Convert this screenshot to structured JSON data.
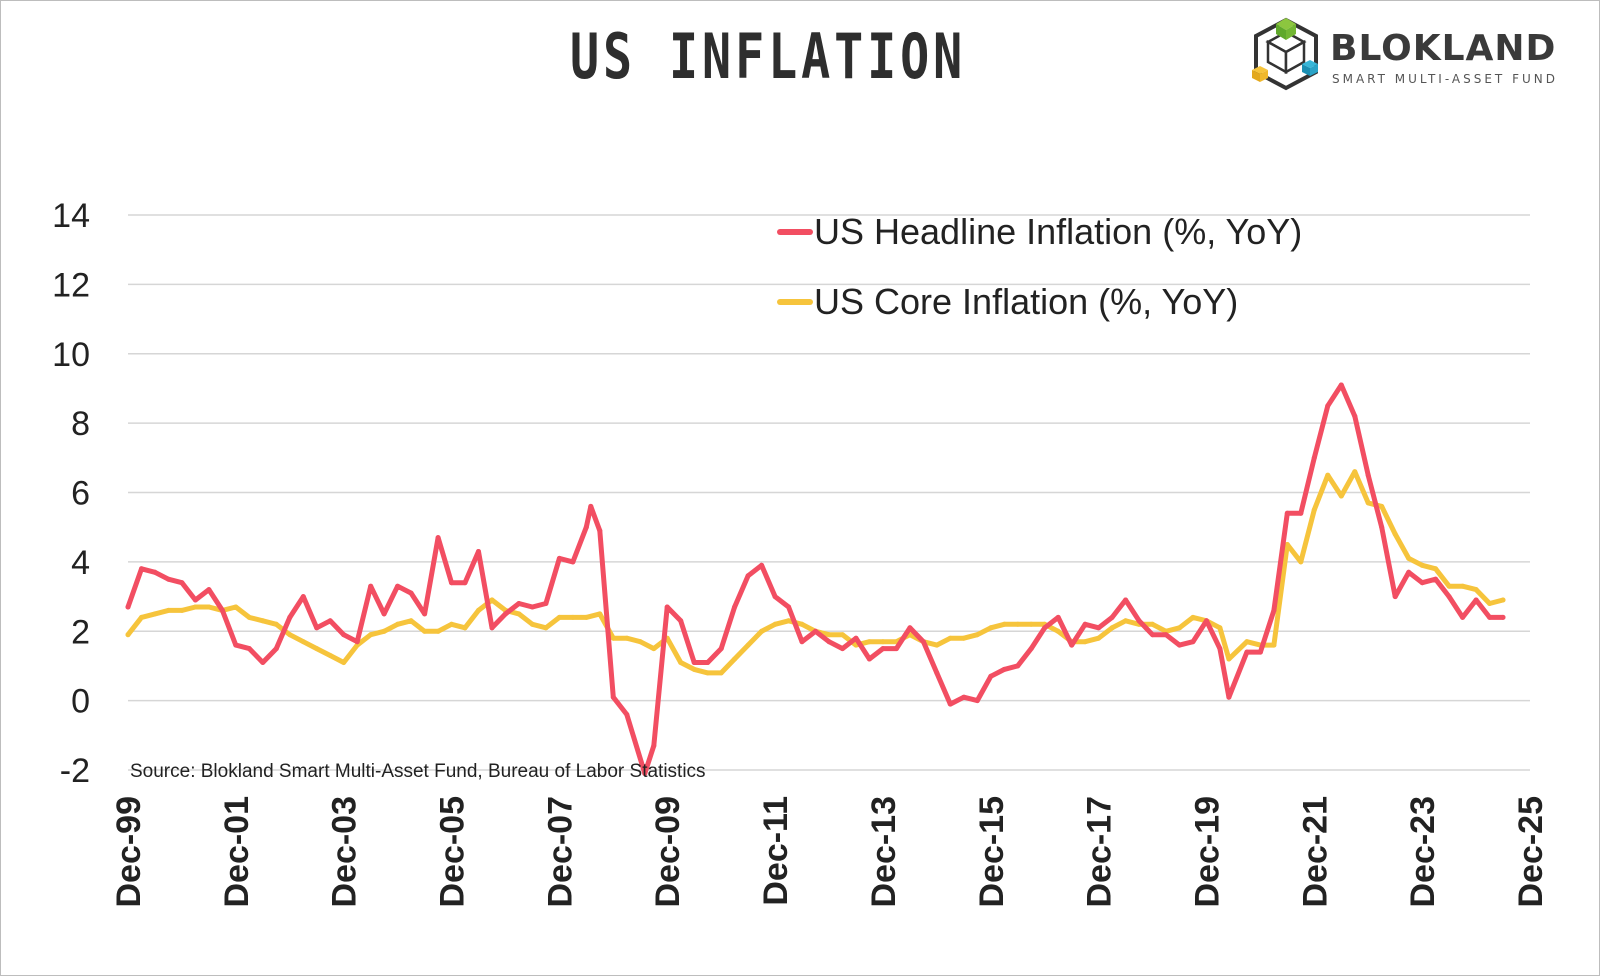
{
  "header": {
    "title": "US INFLATION",
    "logo_name": "BLOKLAND",
    "logo_tagline": "SMART MULTI-ASSET FUND"
  },
  "colors": {
    "headline": "#f24e62",
    "core": "#f6c43c",
    "grid": "#d6d6d6",
    "text": "#222222"
  },
  "chart_data": {
    "type": "line",
    "title": "US INFLATION",
    "source": "Source: Blokland Smart Multi-Asset Fund, Bureau of Labor Statistics",
    "xlabel": "",
    "ylabel": "",
    "ylim": [
      -2,
      14
    ],
    "yticks": [
      -2,
      0,
      2,
      4,
      6,
      8,
      10,
      12,
      14
    ],
    "xlim": [
      "1999-12",
      "2025-12"
    ],
    "xticks": [
      "Dec-99",
      "Dec-01",
      "Dec-03",
      "Dec-05",
      "Dec-07",
      "Dec-09",
      "Dec-11",
      "Dec-13",
      "Dec-15",
      "Dec-17",
      "Dec-19",
      "Dec-21",
      "Dec-23",
      "Dec-25"
    ],
    "grid": true,
    "legend_position": "top-right",
    "series": [
      {
        "name": "US Headline Inflation (%, YoY)",
        "color": "#f24e62",
        "points": [
          [
            "1999-12",
            2.7
          ],
          [
            "2000-03",
            3.8
          ],
          [
            "2000-06",
            3.7
          ],
          [
            "2000-09",
            3.5
          ],
          [
            "2000-12",
            3.4
          ],
          [
            "2001-03",
            2.9
          ],
          [
            "2001-06",
            3.2
          ],
          [
            "2001-09",
            2.6
          ],
          [
            "2001-12",
            1.6
          ],
          [
            "2002-03",
            1.5
          ],
          [
            "2002-06",
            1.1
          ],
          [
            "2002-09",
            1.5
          ],
          [
            "2002-12",
            2.4
          ],
          [
            "2003-03",
            3.0
          ],
          [
            "2003-06",
            2.1
          ],
          [
            "2003-09",
            2.3
          ],
          [
            "2003-12",
            1.9
          ],
          [
            "2004-03",
            1.7
          ],
          [
            "2004-06",
            3.3
          ],
          [
            "2004-09",
            2.5
          ],
          [
            "2004-12",
            3.3
          ],
          [
            "2005-03",
            3.1
          ],
          [
            "2005-06",
            2.5
          ],
          [
            "2005-09",
            4.7
          ],
          [
            "2005-12",
            3.4
          ],
          [
            "2006-03",
            3.4
          ],
          [
            "2006-06",
            4.3
          ],
          [
            "2006-09",
            2.1
          ],
          [
            "2006-12",
            2.5
          ],
          [
            "2007-03",
            2.8
          ],
          [
            "2007-06",
            2.7
          ],
          [
            "2007-09",
            2.8
          ],
          [
            "2007-12",
            4.1
          ],
          [
            "2008-03",
            4.0
          ],
          [
            "2008-06",
            5.0
          ],
          [
            "2008-07",
            5.6
          ],
          [
            "2008-09",
            4.9
          ],
          [
            "2008-12",
            0.1
          ],
          [
            "2009-03",
            -0.4
          ],
          [
            "2009-07",
            -2.1
          ],
          [
            "2009-09",
            -1.3
          ],
          [
            "2009-12",
            2.7
          ],
          [
            "2010-03",
            2.3
          ],
          [
            "2010-06",
            1.1
          ],
          [
            "2010-09",
            1.1
          ],
          [
            "2010-12",
            1.5
          ],
          [
            "2011-03",
            2.7
          ],
          [
            "2011-06",
            3.6
          ],
          [
            "2011-09",
            3.9
          ],
          [
            "2011-12",
            3.0
          ],
          [
            "2012-03",
            2.7
          ],
          [
            "2012-06",
            1.7
          ],
          [
            "2012-09",
            2.0
          ],
          [
            "2012-12",
            1.7
          ],
          [
            "2013-03",
            1.5
          ],
          [
            "2013-06",
            1.8
          ],
          [
            "2013-09",
            1.2
          ],
          [
            "2013-12",
            1.5
          ],
          [
            "2014-03",
            1.5
          ],
          [
            "2014-06",
            2.1
          ],
          [
            "2014-09",
            1.7
          ],
          [
            "2014-12",
            0.8
          ],
          [
            "2015-03",
            -0.1
          ],
          [
            "2015-06",
            0.1
          ],
          [
            "2015-09",
            0.0
          ],
          [
            "2015-12",
            0.7
          ],
          [
            "2016-03",
            0.9
          ],
          [
            "2016-06",
            1.0
          ],
          [
            "2016-09",
            1.5
          ],
          [
            "2016-12",
            2.1
          ],
          [
            "2017-03",
            2.4
          ],
          [
            "2017-06",
            1.6
          ],
          [
            "2017-09",
            2.2
          ],
          [
            "2017-12",
            2.1
          ],
          [
            "2018-03",
            2.4
          ],
          [
            "2018-06",
            2.9
          ],
          [
            "2018-09",
            2.3
          ],
          [
            "2018-12",
            1.9
          ],
          [
            "2019-03",
            1.9
          ],
          [
            "2019-06",
            1.6
          ],
          [
            "2019-09",
            1.7
          ],
          [
            "2019-12",
            2.3
          ],
          [
            "2020-03",
            1.5
          ],
          [
            "2020-05",
            0.1
          ],
          [
            "2020-09",
            1.4
          ],
          [
            "2020-12",
            1.4
          ],
          [
            "2021-03",
            2.6
          ],
          [
            "2021-06",
            5.4
          ],
          [
            "2021-09",
            5.4
          ],
          [
            "2021-12",
            7.0
          ],
          [
            "2022-03",
            8.5
          ],
          [
            "2022-06",
            9.1
          ],
          [
            "2022-09",
            8.2
          ],
          [
            "2022-12",
            6.5
          ],
          [
            "2023-03",
            5.0
          ],
          [
            "2023-06",
            3.0
          ],
          [
            "2023-09",
            3.7
          ],
          [
            "2023-12",
            3.4
          ],
          [
            "2024-03",
            3.5
          ],
          [
            "2024-06",
            3.0
          ],
          [
            "2024-09",
            2.4
          ],
          [
            "2024-12",
            2.9
          ],
          [
            "2025-03",
            2.4
          ],
          [
            "2025-06",
            2.4
          ]
        ]
      },
      {
        "name": "US Core Inflation (%, YoY)",
        "color": "#f6c43c",
        "points": [
          [
            "1999-12",
            1.9
          ],
          [
            "2000-03",
            2.4
          ],
          [
            "2000-06",
            2.5
          ],
          [
            "2000-09",
            2.6
          ],
          [
            "2000-12",
            2.6
          ],
          [
            "2001-03",
            2.7
          ],
          [
            "2001-06",
            2.7
          ],
          [
            "2001-09",
            2.6
          ],
          [
            "2001-12",
            2.7
          ],
          [
            "2002-03",
            2.4
          ],
          [
            "2002-06",
            2.3
          ],
          [
            "2002-09",
            2.2
          ],
          [
            "2002-12",
            1.9
          ],
          [
            "2003-03",
            1.7
          ],
          [
            "2003-06",
            1.5
          ],
          [
            "2003-09",
            1.3
          ],
          [
            "2003-12",
            1.1
          ],
          [
            "2004-03",
            1.6
          ],
          [
            "2004-06",
            1.9
          ],
          [
            "2004-09",
            2.0
          ],
          [
            "2004-12",
            2.2
          ],
          [
            "2005-03",
            2.3
          ],
          [
            "2005-06",
            2.0
          ],
          [
            "2005-09",
            2.0
          ],
          [
            "2005-12",
            2.2
          ],
          [
            "2006-03",
            2.1
          ],
          [
            "2006-06",
            2.6
          ],
          [
            "2006-09",
            2.9
          ],
          [
            "2006-12",
            2.6
          ],
          [
            "2007-03",
            2.5
          ],
          [
            "2007-06",
            2.2
          ],
          [
            "2007-09",
            2.1
          ],
          [
            "2007-12",
            2.4
          ],
          [
            "2008-03",
            2.4
          ],
          [
            "2008-06",
            2.4
          ],
          [
            "2008-09",
            2.5
          ],
          [
            "2008-12",
            1.8
          ],
          [
            "2009-03",
            1.8
          ],
          [
            "2009-06",
            1.7
          ],
          [
            "2009-09",
            1.5
          ],
          [
            "2009-12",
            1.8
          ],
          [
            "2010-03",
            1.1
          ],
          [
            "2010-06",
            0.9
          ],
          [
            "2010-09",
            0.8
          ],
          [
            "2010-12",
            0.8
          ],
          [
            "2011-03",
            1.2
          ],
          [
            "2011-06",
            1.6
          ],
          [
            "2011-09",
            2.0
          ],
          [
            "2011-12",
            2.2
          ],
          [
            "2012-03",
            2.3
          ],
          [
            "2012-06",
            2.2
          ],
          [
            "2012-09",
            2.0
          ],
          [
            "2012-12",
            1.9
          ],
          [
            "2013-03",
            1.9
          ],
          [
            "2013-06",
            1.6
          ],
          [
            "2013-09",
            1.7
          ],
          [
            "2013-12",
            1.7
          ],
          [
            "2014-03",
            1.7
          ],
          [
            "2014-06",
            1.9
          ],
          [
            "2014-09",
            1.7
          ],
          [
            "2014-12",
            1.6
          ],
          [
            "2015-03",
            1.8
          ],
          [
            "2015-06",
            1.8
          ],
          [
            "2015-09",
            1.9
          ],
          [
            "2015-12",
            2.1
          ],
          [
            "2016-03",
            2.2
          ],
          [
            "2016-06",
            2.2
          ],
          [
            "2016-09",
            2.2
          ],
          [
            "2016-12",
            2.2
          ],
          [
            "2017-03",
            2.0
          ],
          [
            "2017-06",
            1.7
          ],
          [
            "2017-09",
            1.7
          ],
          [
            "2017-12",
            1.8
          ],
          [
            "2018-03",
            2.1
          ],
          [
            "2018-06",
            2.3
          ],
          [
            "2018-09",
            2.2
          ],
          [
            "2018-12",
            2.2
          ],
          [
            "2019-03",
            2.0
          ],
          [
            "2019-06",
            2.1
          ],
          [
            "2019-09",
            2.4
          ],
          [
            "2019-12",
            2.3
          ],
          [
            "2020-03",
            2.1
          ],
          [
            "2020-05",
            1.2
          ],
          [
            "2020-09",
            1.7
          ],
          [
            "2020-12",
            1.6
          ],
          [
            "2021-03",
            1.6
          ],
          [
            "2021-06",
            4.5
          ],
          [
            "2021-09",
            4.0
          ],
          [
            "2021-12",
            5.5
          ],
          [
            "2022-03",
            6.5
          ],
          [
            "2022-06",
            5.9
          ],
          [
            "2022-09",
            6.6
          ],
          [
            "2022-12",
            5.7
          ],
          [
            "2023-03",
            5.6
          ],
          [
            "2023-06",
            4.8
          ],
          [
            "2023-09",
            4.1
          ],
          [
            "2023-12",
            3.9
          ],
          [
            "2024-03",
            3.8
          ],
          [
            "2024-06",
            3.3
          ],
          [
            "2024-09",
            3.3
          ],
          [
            "2024-12",
            3.2
          ],
          [
            "2025-03",
            2.8
          ],
          [
            "2025-06",
            2.9
          ]
        ]
      }
    ]
  }
}
